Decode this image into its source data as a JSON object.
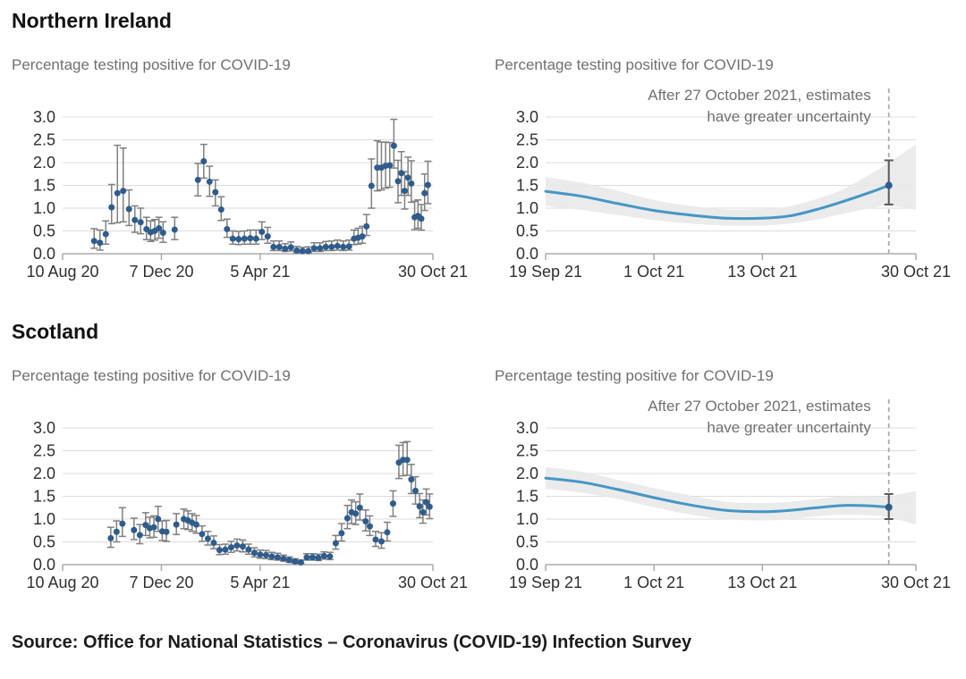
{
  "sections": [
    {
      "heading": "Northern Ireland"
    },
    {
      "heading": "Scotland"
    }
  ],
  "source": "Source: Office for National Statistics – Coronavirus (COVID-19) Infection Survey",
  "colors": {
    "dot": "#2e5c8d",
    "errorbar": "#808080",
    "errorbar_dark": "#595959",
    "trend_line": "#4596c6",
    "band": "#e9e9e9",
    "dashed": "#ababab",
    "grid": "#dcdcdc",
    "axis": "#ababab",
    "axis_label": "#2f2f2f",
    "annotation": "#707070"
  },
  "chart_data": [
    {
      "type": "scatter",
      "region": "Northern Ireland",
      "title": "Percentage testing positive for COVID-19",
      "ylim": [
        0,
        3
      ],
      "yticks": [
        0,
        0.5,
        1,
        1.5,
        2,
        2.5,
        3
      ],
      "xlim": [
        0,
        446
      ],
      "xticks": [
        {
          "pos": 0,
          "label": "10 Aug 20"
        },
        {
          "pos": 119,
          "label": "7 Dec 20"
        },
        {
          "pos": 238,
          "label": "5 Apr 21"
        },
        {
          "pos": 446,
          "label": "30 Oct 21"
        }
      ],
      "point_format": [
        "day",
        "value",
        "ci_low",
        "ci_high"
      ],
      "points": [
        [
          38,
          0.28,
          0.12,
          0.55
        ],
        [
          45,
          0.24,
          0.08,
          0.52
        ],
        [
          52,
          0.43,
          0.21,
          0.72
        ],
        [
          59,
          1.02,
          0.66,
          1.52
        ],
        [
          66,
          1.33,
          0.68,
          2.38
        ],
        [
          73,
          1.38,
          0.7,
          2.32
        ],
        [
          80,
          0.98,
          0.62,
          1.4
        ],
        [
          87,
          0.74,
          0.47,
          1.05
        ],
        [
          94,
          0.69,
          0.44,
          1.0
        ],
        [
          101,
          0.54,
          0.31,
          0.8
        ],
        [
          106,
          0.47,
          0.27,
          0.72
        ],
        [
          111,
          0.5,
          0.3,
          0.75
        ],
        [
          116,
          0.56,
          0.34,
          0.8
        ],
        [
          121,
          0.46,
          0.25,
          0.7
        ],
        [
          135,
          0.53,
          0.31,
          0.8
        ],
        [
          163,
          1.62,
          1.27,
          1.98
        ],
        [
          170,
          2.03,
          1.66,
          2.4
        ],
        [
          177,
          1.58,
          1.26,
          1.92
        ],
        [
          184,
          1.35,
          1.05,
          1.62
        ],
        [
          191,
          0.97,
          0.73,
          1.25
        ],
        [
          198,
          0.54,
          0.36,
          0.76
        ],
        [
          205,
          0.33,
          0.21,
          0.5
        ],
        [
          212,
          0.32,
          0.2,
          0.49
        ],
        [
          219,
          0.33,
          0.21,
          0.5
        ],
        [
          226,
          0.34,
          0.21,
          0.52
        ],
        [
          233,
          0.33,
          0.21,
          0.52
        ],
        [
          240,
          0.48,
          0.31,
          0.7
        ],
        [
          247,
          0.38,
          0.23,
          0.58
        ],
        [
          254,
          0.15,
          0.07,
          0.28
        ],
        [
          261,
          0.15,
          0.07,
          0.28
        ],
        [
          268,
          0.11,
          0.05,
          0.22
        ],
        [
          275,
          0.14,
          0.06,
          0.26
        ],
        [
          282,
          0.07,
          0.02,
          0.16
        ],
        [
          289,
          0.06,
          0.02,
          0.14
        ],
        [
          296,
          0.06,
          0.02,
          0.15
        ],
        [
          303,
          0.12,
          0.05,
          0.24
        ],
        [
          310,
          0.12,
          0.05,
          0.24
        ],
        [
          317,
          0.15,
          0.07,
          0.27
        ],
        [
          324,
          0.15,
          0.07,
          0.28
        ],
        [
          331,
          0.17,
          0.08,
          0.3
        ],
        [
          338,
          0.15,
          0.07,
          0.28
        ],
        [
          345,
          0.16,
          0.08,
          0.3
        ],
        [
          351,
          0.33,
          0.2,
          0.52
        ],
        [
          356,
          0.35,
          0.21,
          0.56
        ],
        [
          361,
          0.38,
          0.23,
          0.6
        ],
        [
          366,
          0.6,
          0.4,
          0.86
        ],
        [
          372,
          1.49,
          1.0,
          2.08
        ],
        [
          379,
          1.89,
          1.38,
          2.48
        ],
        [
          384,
          1.89,
          1.4,
          2.45
        ],
        [
          389,
          1.93,
          1.44,
          2.45
        ],
        [
          394,
          1.94,
          1.46,
          2.44
        ],
        [
          399,
          2.37,
          1.88,
          2.95
        ],
        [
          404,
          1.59,
          1.12,
          2.05
        ],
        [
          408,
          1.77,
          1.28,
          2.24
        ],
        [
          412,
          1.38,
          0.98,
          1.8
        ],
        [
          416,
          1.67,
          1.28,
          2.12
        ],
        [
          420,
          1.54,
          1.13,
          2.04
        ],
        [
          424,
          0.8,
          0.53,
          1.15
        ],
        [
          428,
          0.83,
          0.56,
          1.18
        ],
        [
          432,
          0.77,
          0.52,
          1.08
        ],
        [
          436,
          1.33,
          0.95,
          1.75
        ],
        [
          440,
          1.51,
          1.1,
          2.03
        ]
      ]
    },
    {
      "type": "line",
      "region": "Northern Ireland",
      "title": "Percentage testing positive for COVID-19",
      "annotation": [
        "After 27 October 2021, estimates",
        "have greater uncertainty"
      ],
      "ylim": [
        0,
        3
      ],
      "yticks": [
        0,
        0.5,
        1,
        1.5,
        2,
        2.5,
        3
      ],
      "xlim": [
        0,
        41
      ],
      "xticks": [
        {
          "pos": 0,
          "label": "19 Sep 21"
        },
        {
          "pos": 12,
          "label": "1 Oct 21"
        },
        {
          "pos": 24,
          "label": "13 Oct 21"
        },
        {
          "pos": 41,
          "label": "30 Oct 21"
        }
      ],
      "vline_pos": 38,
      "vline_date": "27 October 2021",
      "line": [
        [
          0,
          1.37
        ],
        [
          4,
          1.26
        ],
        [
          8,
          1.1
        ],
        [
          12,
          0.95
        ],
        [
          16,
          0.85
        ],
        [
          20,
          0.78
        ],
        [
          24,
          0.78
        ],
        [
          27,
          0.83
        ],
        [
          30,
          0.97
        ],
        [
          33,
          1.15
        ],
        [
          36,
          1.35
        ],
        [
          38,
          1.5
        ]
      ],
      "band": [
        [
          0,
          1.05,
          1.68
        ],
        [
          4,
          0.96,
          1.56
        ],
        [
          8,
          0.85,
          1.38
        ],
        [
          12,
          0.74,
          1.18
        ],
        [
          16,
          0.66,
          1.05
        ],
        [
          20,
          0.62,
          0.97
        ],
        [
          24,
          0.62,
          0.98
        ],
        [
          27,
          0.66,
          1.04
        ],
        [
          30,
          0.75,
          1.2
        ],
        [
          33,
          0.88,
          1.42
        ],
        [
          36,
          1.0,
          1.75
        ],
        [
          38,
          1.06,
          2.0
        ],
        [
          41,
          0.97,
          2.4
        ]
      ],
      "end_point": {
        "x": 38,
        "y": 1.5,
        "lo": 1.08,
        "hi": 2.05
      }
    },
    {
      "type": "scatter",
      "region": "Scotland",
      "title": "Percentage testing positive for COVID-19",
      "ylim": [
        0,
        3
      ],
      "yticks": [
        0,
        0.5,
        1,
        1.5,
        2,
        2.5,
        3
      ],
      "xlim": [
        0,
        446
      ],
      "xticks": [
        {
          "pos": 0,
          "label": "10 Aug 20"
        },
        {
          "pos": 119,
          "label": "7 Dec 20"
        },
        {
          "pos": 238,
          "label": "5 Apr 21"
        },
        {
          "pos": 446,
          "label": "30 Oct 21"
        }
      ],
      "point_format": [
        "day",
        "value",
        "ci_low",
        "ci_high"
      ],
      "points": [
        [
          58,
          0.58,
          0.38,
          0.82
        ],
        [
          65,
          0.72,
          0.5,
          0.96
        ],
        [
          72,
          0.9,
          0.62,
          1.25
        ],
        [
          86,
          0.76,
          0.55,
          1.02
        ],
        [
          93,
          0.65,
          0.46,
          0.88
        ],
        [
          100,
          0.87,
          0.64,
          1.14
        ],
        [
          105,
          0.8,
          0.59,
          1.04
        ],
        [
          110,
          0.82,
          0.6,
          1.07
        ],
        [
          115,
          1.0,
          0.73,
          1.28
        ],
        [
          120,
          0.73,
          0.53,
          0.96
        ],
        [
          125,
          0.72,
          0.51,
          0.97
        ],
        [
          137,
          0.88,
          0.66,
          1.12
        ],
        [
          146,
          1.0,
          0.79,
          1.22
        ],
        [
          151,
          0.97,
          0.77,
          1.18
        ],
        [
          156,
          0.92,
          0.73,
          1.12
        ],
        [
          161,
          0.88,
          0.69,
          1.08
        ],
        [
          168,
          0.67,
          0.51,
          0.85
        ],
        [
          175,
          0.57,
          0.43,
          0.73
        ],
        [
          182,
          0.48,
          0.35,
          0.63
        ],
        [
          189,
          0.32,
          0.22,
          0.44
        ],
        [
          196,
          0.33,
          0.23,
          0.45
        ],
        [
          203,
          0.38,
          0.27,
          0.51
        ],
        [
          210,
          0.42,
          0.3,
          0.56
        ],
        [
          217,
          0.4,
          0.28,
          0.54
        ],
        [
          224,
          0.33,
          0.23,
          0.45
        ],
        [
          231,
          0.26,
          0.17,
          0.37
        ],
        [
          238,
          0.22,
          0.14,
          0.32
        ],
        [
          245,
          0.21,
          0.13,
          0.31
        ],
        [
          252,
          0.18,
          0.11,
          0.27
        ],
        [
          259,
          0.16,
          0.1,
          0.25
        ],
        [
          266,
          0.13,
          0.08,
          0.21
        ],
        [
          273,
          0.1,
          0.05,
          0.17
        ],
        [
          280,
          0.07,
          0.03,
          0.13
        ],
        [
          287,
          0.05,
          0.02,
          0.1
        ],
        [
          294,
          0.16,
          0.1,
          0.24
        ],
        [
          301,
          0.16,
          0.1,
          0.24
        ],
        [
          308,
          0.15,
          0.09,
          0.23
        ],
        [
          315,
          0.19,
          0.12,
          0.28
        ],
        [
          322,
          0.18,
          0.11,
          0.27
        ],
        [
          329,
          0.47,
          0.34,
          0.64
        ],
        [
          336,
          0.69,
          0.52,
          0.9
        ],
        [
          343,
          1.02,
          0.79,
          1.3
        ],
        [
          348,
          1.15,
          0.9,
          1.42
        ],
        [
          353,
          1.12,
          0.88,
          1.38
        ],
        [
          358,
          1.25,
          0.98,
          1.55
        ],
        [
          365,
          0.95,
          0.74,
          1.2
        ],
        [
          370,
          0.84,
          0.64,
          1.07
        ],
        [
          377,
          0.55,
          0.4,
          0.73
        ],
        [
          384,
          0.51,
          0.36,
          0.7
        ],
        [
          391,
          0.71,
          0.52,
          0.93
        ],
        [
          398,
          1.34,
          1.06,
          1.62
        ],
        [
          405,
          2.24,
          1.89,
          2.62
        ],
        [
          410,
          2.3,
          1.95,
          2.68
        ],
        [
          415,
          2.3,
          1.96,
          2.7
        ],
        [
          420,
          1.87,
          1.56,
          2.2
        ],
        [
          425,
          1.62,
          1.33,
          1.93
        ],
        [
          430,
          1.28,
          1.03,
          1.56
        ],
        [
          434,
          1.15,
          0.91,
          1.42
        ],
        [
          438,
          1.37,
          1.09,
          1.66
        ],
        [
          442,
          1.27,
          1.01,
          1.55
        ]
      ]
    },
    {
      "type": "line",
      "region": "Scotland",
      "title": "Percentage testing positive for COVID-19",
      "annotation": [
        "After 27 October 2021, estimates",
        "have greater uncertainty"
      ],
      "ylim": [
        0,
        3
      ],
      "yticks": [
        0,
        0.5,
        1,
        1.5,
        2,
        2.5,
        3
      ],
      "xlim": [
        0,
        41
      ],
      "xticks": [
        {
          "pos": 0,
          "label": "19 Sep 21"
        },
        {
          "pos": 12,
          "label": "1 Oct 21"
        },
        {
          "pos": 24,
          "label": "13 Oct 21"
        },
        {
          "pos": 41,
          "label": "30 Oct 21"
        }
      ],
      "vline_pos": 38,
      "vline_date": "27 October 2021",
      "line": [
        [
          0,
          1.9
        ],
        [
          4,
          1.81
        ],
        [
          8,
          1.65
        ],
        [
          12,
          1.47
        ],
        [
          16,
          1.31
        ],
        [
          20,
          1.19
        ],
        [
          24,
          1.16
        ],
        [
          27,
          1.19
        ],
        [
          30,
          1.25
        ],
        [
          33,
          1.3
        ],
        [
          36,
          1.29
        ],
        [
          38,
          1.26
        ]
      ],
      "band": [
        [
          0,
          1.66,
          2.14
        ],
        [
          4,
          1.58,
          2.04
        ],
        [
          8,
          1.44,
          1.86
        ],
        [
          12,
          1.26,
          1.68
        ],
        [
          16,
          1.1,
          1.52
        ],
        [
          20,
          1.0,
          1.38
        ],
        [
          24,
          0.97,
          1.35
        ],
        [
          27,
          1.0,
          1.38
        ],
        [
          30,
          1.06,
          1.44
        ],
        [
          33,
          1.1,
          1.5
        ],
        [
          36,
          1.08,
          1.5
        ],
        [
          38,
          1.04,
          1.5
        ],
        [
          41,
          0.88,
          1.62
        ]
      ],
      "end_point": {
        "x": 38,
        "y": 1.26,
        "lo": 1.0,
        "hi": 1.55
      }
    }
  ]
}
